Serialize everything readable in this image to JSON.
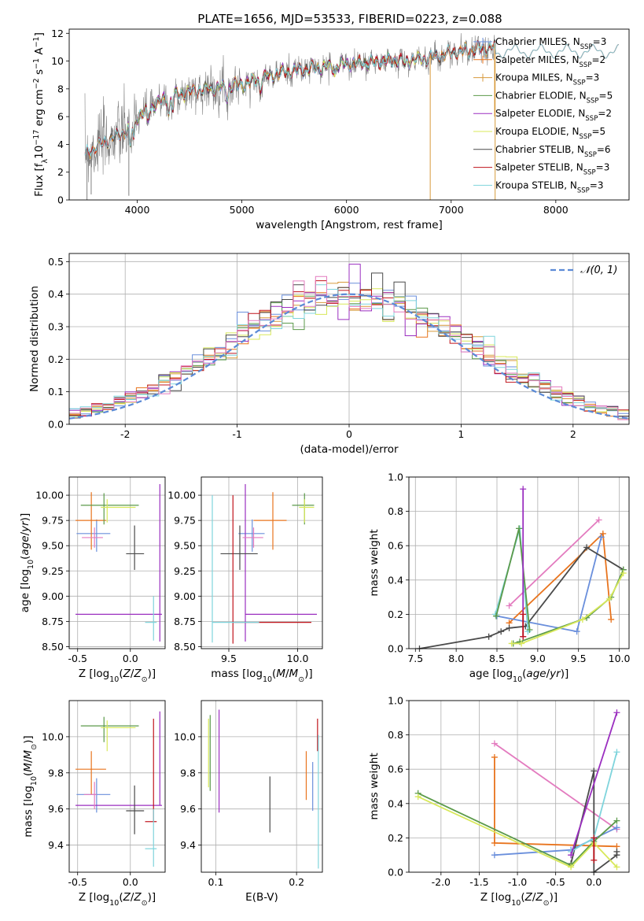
{
  "figure": {
    "title": "PLATE=1656, MJD=53533, FIBERID=0223, z=0.088"
  },
  "colors": {
    "chabrier_miles": "#6a8fdc",
    "salpeter_miles": "#e8741e",
    "kroupa_miles": "#d79a3c",
    "chabrier_elodie": "#5b9a4a",
    "salpeter_elodie": "#9b2fc0",
    "kroupa_elodie": "#d8e85a",
    "chabrier_stelib": "#4a4a4a",
    "salpeter_stelib": "#c0141c",
    "kroupa_stelib": "#7fd4dc",
    "pink": "#e37bbf",
    "data": "#808080",
    "normal": "#5b8ad6",
    "grid": "#b0b0b0"
  },
  "chart_data": [
    {
      "type": "line",
      "panel": "spectrum",
      "xlabel": "wavelength [Angstrom, rest frame]",
      "ylabel": "Flux [f_λ 10^-17 erg cm^-2 s^-1 A^-1]",
      "xlim": [
        3350,
        8700
      ],
      "ylim": [
        0,
        12.3
      ],
      "xticks": [
        4000,
        5000,
        6000,
        7000,
        8000
      ],
      "yticks": [
        0,
        2,
        4,
        6,
        8,
        10,
        12
      ],
      "grid": false,
      "legend_position": "top-right",
      "continuum": {
        "x": [
          3500,
          3600,
          3700,
          3800,
          3900,
          4000,
          4100,
          4200,
          4300,
          4400,
          4600,
          4800,
          5000,
          5200,
          5400,
          5600,
          5800,
          6000,
          6200,
          6400,
          6600,
          6800,
          7000,
          7200,
          7400
        ],
        "y": [
          3.3,
          3.8,
          4.2,
          4.6,
          5.0,
          6.0,
          6.5,
          7.0,
          7.4,
          7.6,
          7.9,
          8.1,
          8.3,
          8.8,
          9.2,
          9.4,
          9.6,
          9.8,
          9.9,
          10.0,
          10.1,
          10.2,
          10.6,
          10.8,
          11.0
        ]
      },
      "legend": [
        {
          "label": "Chabrier MILES, N",
          "sub": "SSP",
          "tail": "=3",
          "color": "chabrier_miles",
          "marker": "+"
        },
        {
          "label": "Salpeter MILES, N",
          "sub": "SSP",
          "tail": "=2",
          "color": "salpeter_miles",
          "marker": "+"
        },
        {
          "label": "Kroupa MILES, N",
          "sub": "SSP",
          "tail": "=3",
          "color": "kroupa_miles",
          "marker": "+"
        },
        {
          "label": "Chabrier ELODIE, N",
          "sub": "SSP",
          "tail": "=5",
          "color": "chabrier_elodie",
          "marker": ""
        },
        {
          "label": "Salpeter ELODIE, N",
          "sub": "SSP",
          "tail": "=2",
          "color": "salpeter_elodie",
          "marker": ""
        },
        {
          "label": "Kroupa ELODIE, N",
          "sub": "SSP",
          "tail": "=5",
          "color": "kroupa_elodie",
          "marker": ""
        },
        {
          "label": "Chabrier STELIB, N",
          "sub": "SSP",
          "tail": "=6",
          "color": "chabrier_stelib",
          "marker": ""
        },
        {
          "label": "Salpeter STELIB, N",
          "sub": "SSP",
          "tail": "=3",
          "color": "salpeter_stelib",
          "marker": ""
        },
        {
          "label": "Kroupa STELIB, N",
          "sub": "SSP",
          "tail": "=3",
          "color": "kroupa_stelib",
          "marker": ""
        }
      ]
    },
    {
      "type": "line",
      "panel": "residuals",
      "xlabel": "(data-model)/error",
      "ylabel": "Normed distribution",
      "xlim": [
        -2.5,
        2.5
      ],
      "ylim": [
        0,
        0.525
      ],
      "xticks": [
        -2,
        -1,
        0,
        1,
        2
      ],
      "yticks": [
        0.0,
        0.1,
        0.2,
        0.3,
        0.4,
        0.5
      ],
      "grid": true,
      "legend": {
        "label": "𝒩(0, 1)",
        "position": "top-right"
      },
      "bin_width": 0.1
    },
    {
      "type": "scatter",
      "panel": "age_vs_Z",
      "xlabel": "Z [log10(Z/Z⊙)]",
      "ylabel": "age  [log10(age/yr)]",
      "xlim": [
        -0.58,
        0.33
      ],
      "ylim": [
        8.48,
        10.18
      ],
      "xticks": [
        -0.5,
        0.0
      ],
      "yticks": [
        8.5,
        8.75,
        9.0,
        9.25,
        9.5,
        9.75,
        10.0
      ],
      "grid": true,
      "points": [
        {
          "x": -0.32,
          "y": 9.62,
          "xerr": [
            0.19,
            0.13
          ],
          "yerr": [
            0.18,
            0.14
          ],
          "color": "chabrier_miles"
        },
        {
          "x": -0.37,
          "y": 9.75,
          "xerr": [
            0.15,
            0.14
          ],
          "yerr": [
            0.29,
            0.28
          ],
          "color": "salpeter_miles"
        },
        {
          "x": -0.25,
          "y": 9.9,
          "xerr": [
            0.22,
            0.33
          ],
          "yerr": [
            0.19,
            0.12
          ],
          "color": "chabrier_elodie"
        },
        {
          "x": 0.28,
          "y": 8.82,
          "xerr": [
            0.8,
            0.02
          ],
          "yerr": [
            0.27,
            1.29
          ],
          "color": "salpeter_elodie"
        },
        {
          "x": -0.22,
          "y": 9.88,
          "xerr": [
            0.06,
            0.27
          ],
          "yerr": [
            0.15,
            0.08
          ],
          "color": "kroupa_elodie"
        },
        {
          "x": 0.04,
          "y": 9.42,
          "xerr": [
            0.08,
            0.09
          ],
          "yerr": [
            0.16,
            0.28
          ],
          "color": "chabrier_stelib"
        },
        {
          "x": 0.22,
          "y": 8.74,
          "xerr": [
            0.08,
            0.03
          ],
          "yerr": [
            0.18,
            0.26
          ],
          "color": "kroupa_stelib"
        },
        {
          "x": -0.34,
          "y": 9.58,
          "xerr": [
            0.12,
            0.08
          ],
          "yerr": [
            0.1,
            0.1
          ],
          "color": "pink"
        }
      ]
    },
    {
      "type": "scatter",
      "panel": "age_vs_mass",
      "xlabel": "mass [log10(M/M⊙)]",
      "ylabel": "",
      "xlim": [
        9.3,
        10.18
      ],
      "ylim": [
        8.48,
        10.18
      ],
      "xticks": [
        9.5,
        10.0
      ],
      "yticks": [
        8.5,
        8.75,
        9.0,
        9.25,
        9.5,
        9.75,
        10.0
      ],
      "grid": true,
      "points": [
        {
          "x": 9.67,
          "y": 9.62,
          "xerr": [
            0.1,
            0.09
          ],
          "yerr": [
            0.18,
            0.14
          ],
          "color": "chabrier_miles"
        },
        {
          "x": 9.82,
          "y": 9.75,
          "xerr": [
            0.14,
            0.1
          ],
          "yerr": [
            0.29,
            0.28
          ],
          "color": "salpeter_miles"
        },
        {
          "x": 10.05,
          "y": 9.9,
          "xerr": [
            0.09,
            0.07
          ],
          "yerr": [
            0.19,
            0.12
          ],
          "color": "chabrier_elodie"
        },
        {
          "x": 9.62,
          "y": 8.82,
          "xerr": [
            0.0,
            0.52
          ],
          "yerr": [
            0.27,
            1.29
          ],
          "color": "salpeter_elodie"
        },
        {
          "x": 10.05,
          "y": 9.88,
          "xerr": [
            0.04,
            0.07
          ],
          "yerr": [
            0.15,
            0.08
          ],
          "color": "kroupa_elodie"
        },
        {
          "x": 9.58,
          "y": 9.42,
          "xerr": [
            0.14,
            0.13
          ],
          "yerr": [
            0.16,
            0.28
          ],
          "color": "chabrier_stelib"
        },
        {
          "x": 9.53,
          "y": 8.74,
          "xerr": [
            0.0,
            0.57
          ],
          "yerr": [
            0.21,
            1.26
          ],
          "color": "salpeter_stelib"
        },
        {
          "x": 9.38,
          "y": 8.74,
          "xerr": [
            0.0,
            0.34
          ],
          "yerr": [
            0.2,
            1.26
          ],
          "color": "kroupa_stelib"
        },
        {
          "x": 9.68,
          "y": 9.58,
          "xerr": [
            0.08,
            0.07
          ],
          "yerr": [
            0.1,
            0.1
          ],
          "color": "pink"
        }
      ]
    },
    {
      "type": "line",
      "panel": "weight_vs_age",
      "xlabel": "age  [log10(age/yr)]",
      "ylabel": "mass weight",
      "xlim": [
        7.42,
        10.12
      ],
      "ylim": [
        0,
        1.0
      ],
      "xticks": [
        7.5,
        8.0,
        8.5,
        9.0,
        9.5,
        10.0
      ],
      "yticks": [
        0.0,
        0.2,
        0.4,
        0.6,
        0.8,
        1.0
      ],
      "grid": true,
      "series": [
        {
          "color": "pink",
          "x": [
            8.65,
            9.75
          ],
          "y": [
            0.25,
            0.75
          ]
        },
        {
          "color": "salpeter_miles",
          "x": [
            8.65,
            9.8,
            9.9
          ],
          "y": [
            0.15,
            0.67,
            0.17
          ]
        },
        {
          "color": "chabrier_miles",
          "x": [
            8.5,
            9.48,
            9.78
          ],
          "y": [
            0.19,
            0.1,
            0.65
          ]
        },
        {
          "color": "chabrier_stelib",
          "x": [
            7.55,
            8.4,
            8.55,
            8.65,
            8.85,
            9.6,
            10.05
          ],
          "y": [
            0.0,
            0.07,
            0.1,
            0.12,
            0.13,
            0.59,
            0.46
          ]
        },
        {
          "color": "chabrier_elodie",
          "x": [
            8.7,
            8.78,
            9.6,
            9.9,
            10.05
          ],
          "y": [
            0.03,
            0.04,
            0.18,
            0.3,
            0.46
          ]
        },
        {
          "color": "kroupa_elodie",
          "x": [
            8.68,
            8.8,
            9.55,
            9.88,
            10.05
          ],
          "y": [
            0.03,
            0.03,
            0.17,
            0.29,
            0.44
          ]
        },
        {
          "color": "kroupa_stelib",
          "x": [
            8.48,
            8.78,
            8.88
          ],
          "y": [
            0.2,
            0.7,
            0.1
          ]
        },
        {
          "color": "chabrier_elodie",
          "x": [
            8.49,
            8.77,
            8.9
          ],
          "y": [
            0.19,
            0.7,
            0.11
          ]
        },
        {
          "color": "salpeter_elodie",
          "x": [
            8.82,
            8.82
          ],
          "y": [
            0.07,
            0.93
          ]
        },
        {
          "color": "salpeter_stelib",
          "x": [
            8.82,
            8.82
          ],
          "y": [
            0.07,
            0.2
          ]
        }
      ]
    },
    {
      "type": "scatter",
      "panel": "mass_vs_Z",
      "xlabel": "Z [log10(Z/Z⊙)]",
      "ylabel": "mass [log10(M/M⊙)]",
      "xlim": [
        -0.58,
        0.33
      ],
      "ylim": [
        9.25,
        10.2
      ],
      "xticks": [
        -0.5,
        0.0
      ],
      "yticks": [
        9.4,
        9.6,
        9.8,
        10.0
      ],
      "grid": true,
      "points": [
        {
          "x": -0.32,
          "y": 9.68,
          "xerr": [
            0.19,
            0.13
          ],
          "yerr": [
            0.1,
            0.09
          ],
          "color": "chabrier_miles"
        },
        {
          "x": -0.37,
          "y": 9.82,
          "xerr": [
            0.15,
            0.14
          ],
          "yerr": [
            0.14,
            0.1
          ],
          "color": "salpeter_miles"
        },
        {
          "x": -0.25,
          "y": 10.06,
          "xerr": [
            0.22,
            0.33
          ],
          "yerr": [
            0.09,
            0.05
          ],
          "color": "chabrier_elodie"
        },
        {
          "x": 0.28,
          "y": 9.62,
          "xerr": [
            0.8,
            0.02
          ],
          "yerr": [
            0.0,
            0.52
          ],
          "color": "salpeter_elodie"
        },
        {
          "x": -0.22,
          "y": 10.05,
          "xerr": [
            0.06,
            0.27
          ],
          "yerr": [
            0.13,
            0.04
          ],
          "color": "kroupa_elodie"
        },
        {
          "x": 0.04,
          "y": 9.59,
          "xerr": [
            0.08,
            0.09
          ],
          "yerr": [
            0.13,
            0.14
          ],
          "color": "chabrier_stelib"
        },
        {
          "x": 0.22,
          "y": 9.53,
          "xerr": [
            0.08,
            0.03
          ],
          "yerr": [
            0.0,
            0.57
          ],
          "color": "salpeter_stelib"
        },
        {
          "x": 0.22,
          "y": 9.38,
          "xerr": [
            0.08,
            0.03
          ],
          "yerr": [
            0.1,
            0.22
          ],
          "color": "kroupa_stelib"
        },
        {
          "x": -0.34,
          "y": 9.68,
          "xerr": [
            0.1,
            0.02
          ],
          "yerr": [
            0.08,
            0.07
          ],
          "color": "pink"
        }
      ]
    },
    {
      "type": "scatter",
      "panel": "mass_vs_ebv",
      "xlabel": "E(B-V)",
      "ylabel": "",
      "xlim": [
        0.082,
        0.232
      ],
      "ylim": [
        9.25,
        10.2
      ],
      "xticks": [
        0.1,
        0.2
      ],
      "yticks": [
        9.4,
        9.6,
        9.8,
        10.0
      ],
      "grid": true,
      "points": [
        {
          "x": 0.22,
          "y": 9.72,
          "yerr": [
            0.13,
            0.14
          ],
          "color": "chabrier_miles"
        },
        {
          "x": 0.212,
          "y": 9.78,
          "yerr": [
            0.13,
            0.14
          ],
          "color": "salpeter_miles"
        },
        {
          "x": 0.093,
          "y": 9.9,
          "yerr": [
            0.2,
            0.22
          ],
          "color": "chabrier_elodie"
        },
        {
          "x": 0.104,
          "y": 9.86,
          "yerr": [
            0.28,
            0.29
          ],
          "color": "salpeter_elodie"
        },
        {
          "x": 0.091,
          "y": 9.9,
          "yerr": [
            0.18,
            0.2
          ],
          "color": "kroupa_elodie"
        },
        {
          "x": 0.167,
          "y": 9.63,
          "yerr": [
            0.16,
            0.15
          ],
          "color": "chabrier_stelib"
        },
        {
          "x": 0.226,
          "y": 10.0,
          "yerr": [
            0.08,
            0.1
          ],
          "color": "salpeter_stelib"
        },
        {
          "x": 0.227,
          "y": 9.65,
          "yerr": [
            0.38,
            0.36
          ],
          "color": "kroupa_stelib"
        }
      ]
    },
    {
      "type": "line",
      "panel": "weight_vs_Z",
      "xlabel": "Z [log10(Z/Z⊙)]",
      "ylabel": "mass weight",
      "xlim": [
        -2.42,
        0.46
      ],
      "ylim": [
        0,
        1.0
      ],
      "xticks": [
        -2.0,
        -1.5,
        -1.0,
        -0.5,
        0.0
      ],
      "yticks": [
        0.0,
        0.2,
        0.4,
        0.6,
        0.8,
        1.0
      ],
      "grid": true,
      "series": [
        {
          "color": "pink",
          "x": [
            -1.3,
            0.3
          ],
          "y": [
            0.75,
            0.25
          ]
        },
        {
          "color": "salpeter_miles",
          "x": [
            -1.3,
            -1.3,
            0.3
          ],
          "y": [
            0.67,
            0.17,
            0.15
          ]
        },
        {
          "color": "chabrier_miles",
          "x": [
            -1.3,
            -0.3,
            0.3
          ],
          "y": [
            0.1,
            0.13,
            0.26
          ]
        },
        {
          "color": "chabrier_stelib",
          "x": [
            -0.3,
            0.0,
            0.0,
            0.3,
            0.3
          ],
          "y": [
            0.05,
            0.59,
            0.0,
            0.1,
            0.12
          ]
        },
        {
          "color": "chabrier_elodie",
          "x": [
            -2.3,
            -0.3,
            0.0,
            0.3
          ],
          "y": [
            0.46,
            0.04,
            0.18,
            0.3
          ]
        },
        {
          "color": "kroupa_elodie",
          "x": [
            -2.3,
            -0.3,
            0.0,
            0.3
          ],
          "y": [
            0.44,
            0.03,
            0.17,
            0.03
          ]
        },
        {
          "color": "kroupa_stelib",
          "x": [
            -0.3,
            0.0,
            0.3
          ],
          "y": [
            0.12,
            0.2,
            0.7
          ]
        },
        {
          "color": "salpeter_elodie",
          "x": [
            -0.3,
            0.3
          ],
          "y": [
            0.1,
            0.93
          ]
        },
        {
          "color": "salpeter_stelib",
          "x": [
            0.0,
            0.0
          ],
          "y": [
            0.07,
            0.2
          ]
        }
      ]
    }
  ]
}
